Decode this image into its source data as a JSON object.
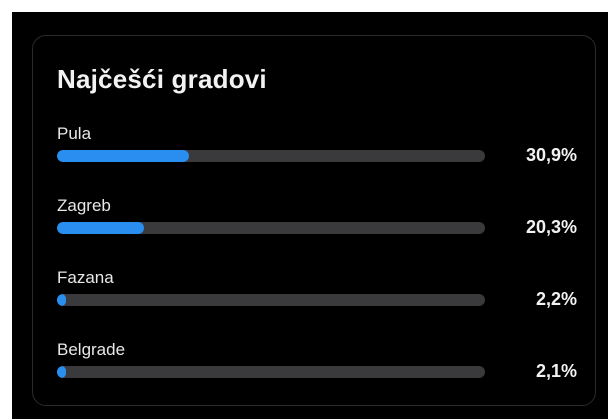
{
  "card": {
    "title": "Najčešći gradovi"
  },
  "cities": [
    {
      "name": "Pula",
      "percent_label": "30,9%",
      "value": 30.9
    },
    {
      "name": "Zagreb",
      "percent_label": "20,3%",
      "value": 20.3
    },
    {
      "name": "Fazana",
      "percent_label": "2,2%",
      "value": 2.2
    },
    {
      "name": "Belgrade",
      "percent_label": "2,1%",
      "value": 2.1
    }
  ],
  "colors": {
    "bar_fill": "#2a8df0",
    "bar_track": "#3a3a3c",
    "background": "#000000"
  }
}
